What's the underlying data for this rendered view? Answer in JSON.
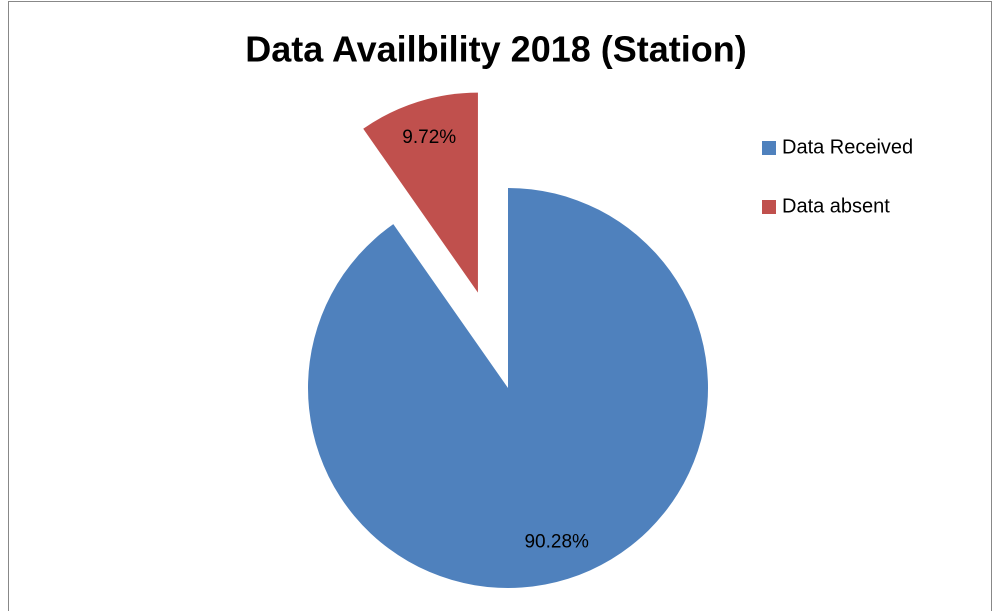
{
  "chart_data": {
    "type": "pie",
    "title": "Data Availbility 2018 (Station)",
    "categories": [
      "Data Received",
      "Data absent"
    ],
    "values": [
      90.28,
      9.72
    ],
    "value_labels": [
      "90.28%",
      "9.72%"
    ],
    "colors": [
      "#4f81bd",
      "#c0504d"
    ],
    "exploded": [
      false,
      true
    ],
    "legend": "right"
  }
}
